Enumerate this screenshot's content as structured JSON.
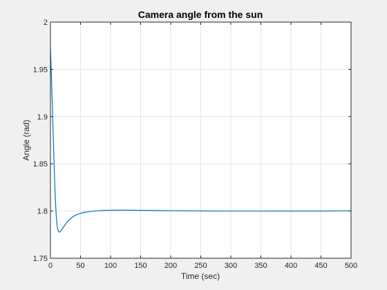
{
  "chart_data": {
    "type": "line",
    "title": "Camera angle from the sun",
    "xlabel": "Time (sec)",
    "ylabel": "Angle (rad)",
    "xlim": [
      0,
      500
    ],
    "ylim": [
      1.75,
      2.0
    ],
    "grid": true,
    "x_ticks": [
      0,
      50,
      100,
      150,
      200,
      250,
      300,
      350,
      400,
      450,
      500
    ],
    "y_ticks": [
      1.75,
      1.8,
      1.85,
      1.9,
      1.95,
      2.0
    ],
    "x_tick_labels": [
      "0",
      "50",
      "100",
      "150",
      "200",
      "250",
      "300",
      "350",
      "400",
      "450",
      "500"
    ],
    "y_tick_labels": [
      "1.75",
      "1.8",
      "1.85",
      "1.9",
      "1.95",
      "2"
    ],
    "series": [
      {
        "color": "#0072bd",
        "x": [
          0,
          2,
          4,
          6,
          8,
          10,
          12,
          14,
          16,
          18,
          20,
          25,
          30,
          40,
          50,
          60,
          80,
          100,
          120,
          150,
          200,
          250,
          300,
          350,
          400,
          450,
          500
        ],
        "y": [
          1.972,
          1.935,
          1.893,
          1.85,
          1.815,
          1.792,
          1.781,
          1.778,
          1.778,
          1.7795,
          1.7815,
          1.786,
          1.79,
          1.795,
          1.7975,
          1.799,
          1.8003,
          1.8008,
          1.8009,
          1.8007,
          1.8003,
          1.80005,
          1.79995,
          1.79995,
          1.8,
          1.8,
          1.8002
        ]
      }
    ]
  }
}
